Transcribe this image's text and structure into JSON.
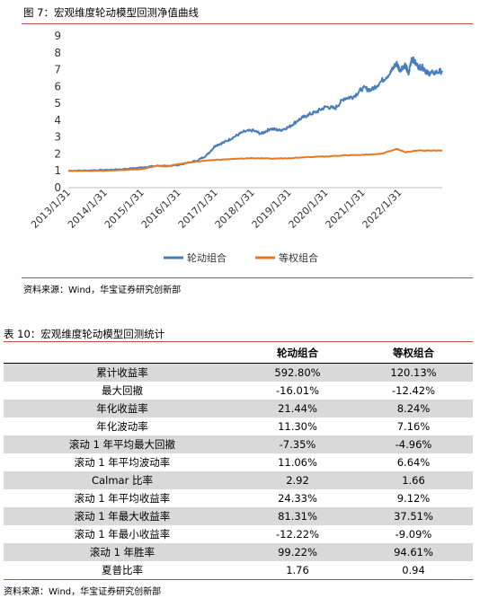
{
  "figure": {
    "title": "图 7：宏观维度轮动模型回测净值曲线",
    "source": "资料来源：Wind，华宝证券研究创新部"
  },
  "chart_data": {
    "type": "line",
    "title": "",
    "xlabel": "",
    "ylabel": "",
    "ylim": [
      0,
      9
    ],
    "yticks": [
      0,
      1,
      2,
      3,
      4,
      5,
      6,
      7,
      8,
      9
    ],
    "x_ticks": [
      "2013/1/31",
      "2014/1/31",
      "2015/1/31",
      "2016/1/31",
      "2017/1/31",
      "2018/1/31",
      "2019/1/31",
      "2020/1/31",
      "2021/1/31",
      "2022/1/31"
    ],
    "x_range": [
      "2013/1/31",
      "2023/3/31"
    ],
    "legend_position": "bottom",
    "grid": false,
    "series": [
      {
        "name": "轮动组合",
        "color": "#4a7ebb",
        "points": [
          [
            "2013/1/31",
            1.0
          ],
          [
            "2013/7/31",
            1.02
          ],
          [
            "2014/1/31",
            1.05
          ],
          [
            "2014/7/31",
            1.1
          ],
          [
            "2015/1/31",
            1.2
          ],
          [
            "2015/6/30",
            1.3
          ],
          [
            "2015/9/30",
            1.28
          ],
          [
            "2016/1/31",
            1.35
          ],
          [
            "2016/7/31",
            1.6
          ],
          [
            "2016/10/31",
            1.9
          ],
          [
            "2017/1/31",
            2.5
          ],
          [
            "2017/4/30",
            2.7
          ],
          [
            "2017/7/31",
            3.0
          ],
          [
            "2017/10/31",
            3.3
          ],
          [
            "2018/1/31",
            3.4
          ],
          [
            "2018/4/30",
            3.2
          ],
          [
            "2018/7/31",
            3.5
          ],
          [
            "2018/10/31",
            3.4
          ],
          [
            "2019/1/31",
            3.6
          ],
          [
            "2019/4/30",
            4.0
          ],
          [
            "2019/7/31",
            4.3
          ],
          [
            "2019/10/31",
            4.5
          ],
          [
            "2020/1/31",
            4.8
          ],
          [
            "2020/4/30",
            4.7
          ],
          [
            "2020/7/31",
            5.3
          ],
          [
            "2020/10/31",
            5.4
          ],
          [
            "2021/1/31",
            5.9
          ],
          [
            "2021/4/30",
            5.8
          ],
          [
            "2021/7/31",
            6.3
          ],
          [
            "2021/10/31",
            6.8
          ],
          [
            "2021/12/31",
            7.4
          ],
          [
            "2022/1/31",
            7.0
          ],
          [
            "2022/3/31",
            7.3
          ],
          [
            "2022/4/30",
            6.7
          ],
          [
            "2022/5/31",
            7.7
          ],
          [
            "2022/7/31",
            7.2
          ],
          [
            "2022/9/30",
            7.1
          ],
          [
            "2022/10/31",
            6.8
          ],
          [
            "2022/12/31",
            6.8
          ],
          [
            "2023/3/31",
            6.93
          ]
        ]
      },
      {
        "name": "等权组合",
        "color": "#e87722",
        "points": [
          [
            "2013/1/31",
            1.0
          ],
          [
            "2014/1/31",
            1.0
          ],
          [
            "2015/1/31",
            1.1
          ],
          [
            "2015/6/30",
            1.3
          ],
          [
            "2015/9/30",
            1.25
          ],
          [
            "2016/1/31",
            1.4
          ],
          [
            "2016/7/31",
            1.55
          ],
          [
            "2017/1/31",
            1.65
          ],
          [
            "2017/7/31",
            1.7
          ],
          [
            "2018/1/31",
            1.75
          ],
          [
            "2018/7/31",
            1.72
          ],
          [
            "2019/1/31",
            1.75
          ],
          [
            "2019/7/31",
            1.82
          ],
          [
            "2020/1/31",
            1.85
          ],
          [
            "2020/7/31",
            1.92
          ],
          [
            "2021/1/31",
            1.95
          ],
          [
            "2021/7/31",
            2.0
          ],
          [
            "2021/12/31",
            2.3
          ],
          [
            "2022/3/31",
            2.1
          ],
          [
            "2022/7/31",
            2.2
          ],
          [
            "2023/3/31",
            2.2
          ]
        ]
      }
    ]
  },
  "table": {
    "title": "表 10：宏观维度轮动模型回测统计",
    "headers": [
      "",
      "轮动组合",
      "等权组合"
    ],
    "rows": [
      [
        "累计收益率",
        "592.80%",
        "120.13%"
      ],
      [
        "最大回撤",
        "-16.01%",
        "-12.42%"
      ],
      [
        "年化收益率",
        "21.44%",
        "8.24%"
      ],
      [
        "年化波动率",
        "11.30%",
        "7.16%"
      ],
      [
        "滚动 1 年平均最大回撤",
        "-7.35%",
        "-4.96%"
      ],
      [
        "滚动 1 年平均波动率",
        "11.06%",
        "6.64%"
      ],
      [
        "Calmar 比率",
        "2.92",
        "1.66"
      ],
      [
        "滚动 1 年平均收益率",
        "24.33%",
        "9.12%"
      ],
      [
        "滚动 1 年最大收益率",
        "81.31%",
        "37.51%"
      ],
      [
        "滚动 1 年最小收益率",
        "-12.22%",
        "-9.09%"
      ],
      [
        "滚动 1 年胜率",
        "99.22%",
        "94.61%"
      ],
      [
        "夏普比率",
        "1.76",
        "0.94"
      ]
    ],
    "source": "资料来源：Wind，华宝证券研究创新部"
  }
}
